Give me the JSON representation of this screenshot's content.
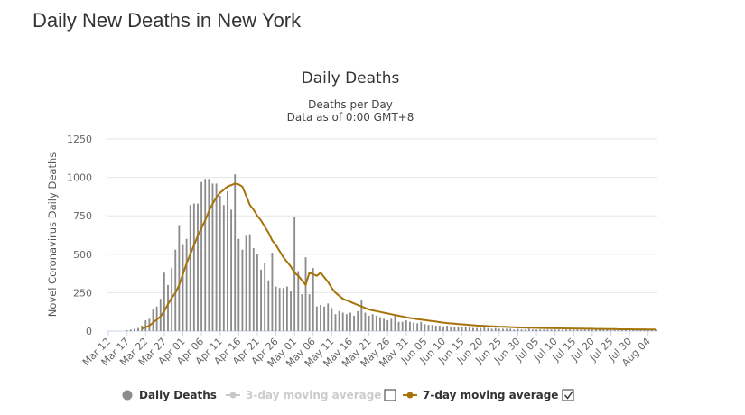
{
  "page": {
    "heading": "Daily New Deaths in New York"
  },
  "chart_data": {
    "type": "bar",
    "title": "Daily Deaths",
    "subtitle_line1": "Deaths per Day",
    "subtitle_line2": "Data as of 0:00 GMT+8",
    "ylabel": "Novel Coronavirus Daily Deaths",
    "xlabel": "",
    "ylim": [
      0,
      1250
    ],
    "yticks": [
      0,
      250,
      500,
      750,
      1000,
      1250
    ],
    "grid": true,
    "legend_position": "bottom",
    "x_tick_labels": [
      "Mar 12",
      "Mar 17",
      "Mar 22",
      "Mar 27",
      "Apr 01",
      "Apr 06",
      "Apr 11",
      "Apr 16",
      "Apr 21",
      "Apr 26",
      "May 01",
      "May 06",
      "May 11",
      "May 16",
      "May 21",
      "May 26",
      "May 31",
      "Jun 05",
      "Jun 10",
      "Jun 15",
      "Jun 20",
      "Jun 25",
      "Jun 30",
      "Jul 05",
      "Jul 10",
      "Jul 15",
      "Jul 20",
      "Jul 25",
      "Jul 30",
      "Aug 04"
    ],
    "x_start": "Mar 12",
    "series": [
      {
        "name": "Daily Deaths",
        "type": "bar",
        "color": "#8c8c8c",
        "values": [
          0,
          0,
          0,
          0,
          0,
          5,
          10,
          15,
          20,
          35,
          70,
          80,
          140,
          160,
          210,
          380,
          300,
          410,
          530,
          690,
          560,
          600,
          820,
          830,
          830,
          970,
          990,
          990,
          960,
          960,
          880,
          820,
          910,
          790,
          1020,
          600,
          530,
          620,
          630,
          540,
          500,
          400,
          440,
          330,
          510,
          290,
          280,
          280,
          290,
          260,
          740,
          390,
          240,
          480,
          240,
          410,
          160,
          170,
          160,
          180,
          150,
          110,
          130,
          120,
          110,
          120,
          100,
          130,
          200,
          120,
          100,
          110,
          100,
          90,
          80,
          70,
          80,
          100,
          60,
          60,
          70,
          60,
          55,
          50,
          60,
          45,
          40,
          40,
          35,
          35,
          30,
          35,
          30,
          25,
          30,
          30,
          25,
          25,
          20,
          20,
          20,
          25,
          20,
          15,
          20,
          15,
          15,
          15,
          15,
          10,
          15,
          10,
          10,
          15,
          10,
          10,
          10,
          10,
          10,
          10,
          10,
          10,
          10,
          10,
          10,
          10,
          10,
          10,
          10,
          10,
          10,
          10,
          10,
          10,
          10,
          10,
          10,
          10,
          10,
          10,
          10,
          10,
          10,
          10,
          10,
          10,
          10,
          10
        ]
      },
      {
        "name": "3-day moving average",
        "type": "line",
        "color": "#c8c8c8",
        "visible": false,
        "values": []
      },
      {
        "name": "7-day moving average",
        "type": "line",
        "color": "#a5730a",
        "visible": true,
        "values": [
          null,
          null,
          null,
          null,
          null,
          null,
          null,
          null,
          null,
          15,
          25,
          35,
          55,
          75,
          95,
          130,
          175,
          215,
          250,
          300,
          370,
          440,
          500,
          560,
          620,
          670,
          720,
          780,
          830,
          870,
          900,
          920,
          940,
          950,
          960,
          955,
          940,
          880,
          820,
          790,
          750,
          720,
          680,
          640,
          590,
          560,
          520,
          480,
          450,
          420,
          380,
          360,
          330,
          300,
          380,
          370,
          360,
          380,
          350,
          320,
          280,
          250,
          230,
          210,
          200,
          190,
          180,
          170,
          160,
          150,
          140,
          135,
          130,
          125,
          120,
          115,
          110,
          105,
          100,
          95,
          90,
          85,
          82,
          78,
          75,
          72,
          68,
          65,
          62,
          58,
          55,
          52,
          50,
          48,
          46,
          44,
          42,
          40,
          38,
          36,
          35,
          34,
          32,
          31,
          30,
          29,
          28,
          27,
          26,
          25,
          24,
          23,
          22,
          22,
          21,
          21,
          20,
          20,
          19,
          19,
          18,
          18,
          18,
          17,
          17,
          16,
          16,
          16,
          15,
          15,
          15,
          14,
          14,
          14,
          13,
          13,
          13,
          12,
          12,
          12,
          12,
          11,
          11,
          11,
          11,
          10,
          10,
          10
        ]
      }
    ],
    "legend": [
      {
        "name": "Daily Deaths",
        "marker": "circle",
        "color": "#8c8c8c",
        "active": true
      },
      {
        "name": "3-day moving average",
        "marker": "line-circle",
        "color": "#c8c8c8",
        "active": false
      },
      {
        "name": "7-day moving average",
        "marker": "line-circle",
        "color": "#a5730a",
        "active": true
      }
    ]
  }
}
